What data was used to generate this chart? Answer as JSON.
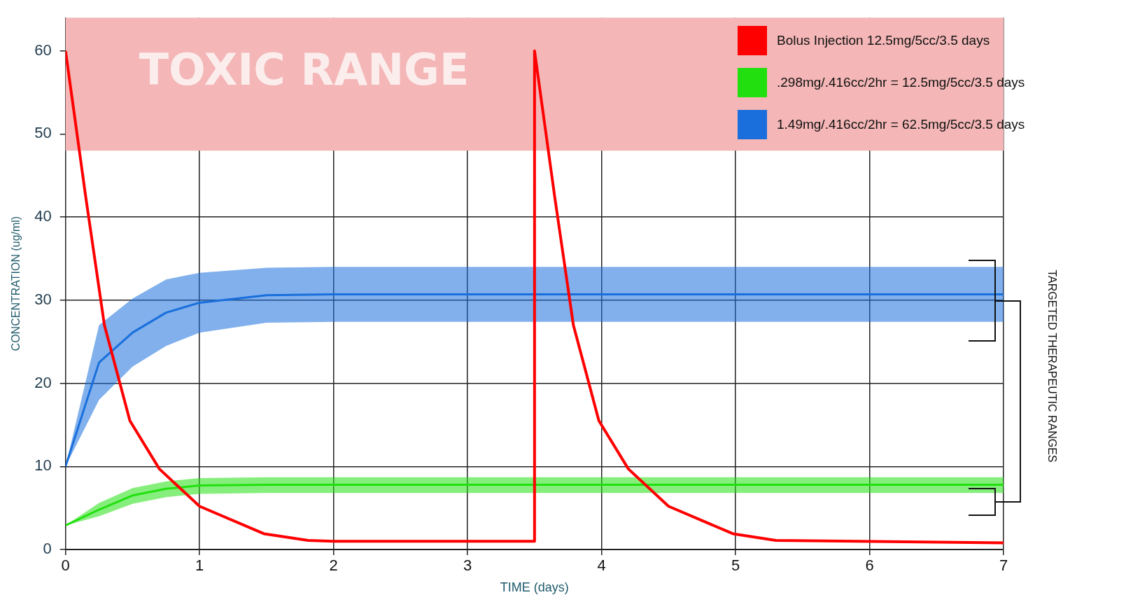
{
  "chart_data": {
    "type": "line",
    "xlabel": "TIME (days)",
    "ylabel": "CONCENTRATION (ug/ml)",
    "xlim": [
      0,
      7
    ],
    "xticks": [
      0,
      1,
      2,
      3,
      4,
      5,
      6,
      7
    ],
    "ylim": [
      0,
      64
    ],
    "yticks": [
      0,
      10,
      20,
      30,
      40,
      50,
      60
    ],
    "grid": true,
    "legend": "top right",
    "series": [
      {
        "name": "Bolus Injection 12.5mg/5cc/3.5 days",
        "color": "#ff0000",
        "x": [
          0,
          0.15,
          0.29,
          0.48,
          0.7,
          1,
          1.48,
          1.81,
          2,
          3.5,
          3.5,
          3.65,
          3.79,
          3.98,
          4.2,
          4.5,
          4.98,
          5.3,
          7
        ],
        "values": [
          60,
          42.5,
          27,
          15.5,
          9.7,
          5.2,
          1.9,
          1.1,
          1,
          1,
          60,
          42.5,
          27,
          15.5,
          9.7,
          5.2,
          1.9,
          1.1,
          0.8
        ]
      },
      {
        "name": ".298mg/.416cc/2hr = 12.5mg/5cc/3.5 days",
        "color": "#22e010",
        "x": [
          0,
          0.25,
          0.5,
          0.75,
          1,
          1.5,
          2,
          7
        ],
        "values": [
          2.9,
          4.8,
          6.5,
          7.3,
          7.7,
          7.8,
          7.8,
          7.8
        ],
        "lower": [
          2.9,
          4,
          5.5,
          6.3,
          6.7,
          6.8,
          6.8,
          6.8
        ],
        "upper": [
          2.9,
          5.6,
          7.4,
          8.2,
          8.6,
          8.7,
          8.7,
          8.7
        ]
      },
      {
        "name": "1.49mg/.416cc/2hr = 62.5mg/5cc/3.5 days",
        "color": "#1a6fdc",
        "x": [
          0,
          0.25,
          0.5,
          0.75,
          1,
          1.5,
          2,
          7
        ],
        "values": [
          10,
          22.5,
          26.1,
          28.5,
          29.7,
          30.6,
          30.7,
          30.7
        ],
        "lower": [
          10,
          18,
          22,
          24.5,
          26.1,
          27.3,
          27.4,
          27.4
        ],
        "upper": [
          10,
          27,
          30.2,
          32.5,
          33.3,
          33.9,
          34,
          34
        ]
      }
    ],
    "bands": [
      {
        "axis": "y",
        "from": 48,
        "to": 64,
        "label": "TOXIC RANGE",
        "color": "#f4b6b6"
      }
    ],
    "annotations": [
      "TARGETED THERAPEUTIC RANGES"
    ]
  }
}
